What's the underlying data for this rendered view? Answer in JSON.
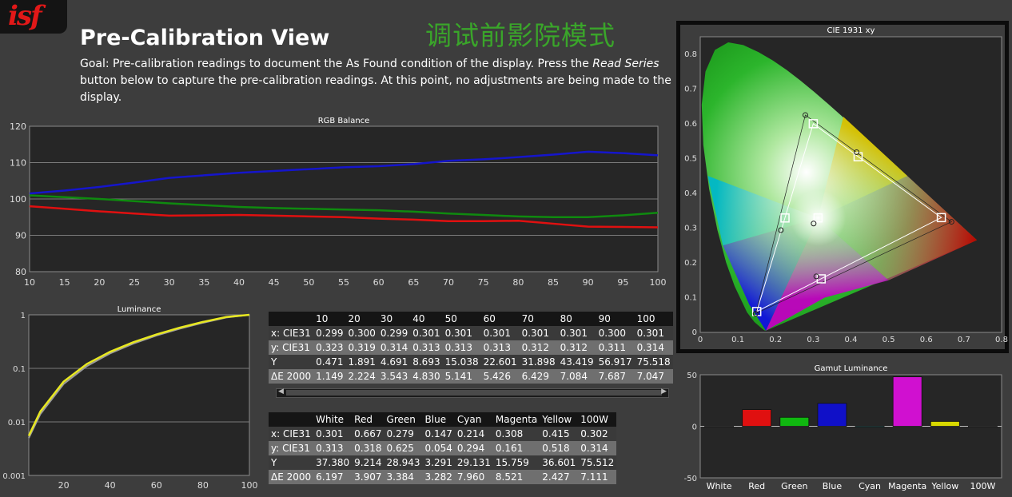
{
  "logo_text": "isf",
  "title": "Pre-Calibration View",
  "chinese_title": "调试前影院模式",
  "goal": {
    "prefix": "Goal: Pre-calibration readings to document the As Found condition of the display. Press the ",
    "emphasis": "Read Series",
    "suffix": " button below to capture the pre-calibration readings. At this point, no adjustments are being made to the display."
  },
  "colors": {
    "background": "#3d3d3d",
    "plot_bg": "#262626",
    "red": "#e01010",
    "green": "#0f8a0f",
    "blue": "#1515cc",
    "yellow": "#e8e820",
    "title_green": "#3aa52a"
  },
  "chart_data": [
    {
      "id": "rgb",
      "type": "line",
      "title": "RGB Balance",
      "x": [
        10,
        15,
        20,
        25,
        30,
        35,
        40,
        45,
        50,
        55,
        60,
        65,
        70,
        75,
        80,
        85,
        90,
        95,
        100
      ],
      "xlim": [
        10,
        100
      ],
      "ylim": [
        80,
        120
      ],
      "yticks": [
        80,
        90,
        100,
        110,
        120
      ],
      "grid": true,
      "series": [
        {
          "color": "#1515cc",
          "values": [
            101.5,
            102.3,
            103.3,
            104.5,
            105.8,
            106.5,
            107.2,
            107.7,
            108.2,
            108.7,
            109.0,
            109.6,
            110.5,
            110.9,
            111.5,
            112.2,
            113.0,
            112.6,
            112.0
          ]
        },
        {
          "color": "#0f8a0f",
          "values": [
            101.0,
            100.5,
            100.0,
            99.4,
            98.8,
            98.3,
            97.8,
            97.5,
            97.3,
            97.1,
            96.9,
            96.5,
            96.0,
            95.6,
            95.2,
            95.0,
            95.0,
            95.5,
            96.2
          ]
        },
        {
          "color": "#e01010",
          "values": [
            98.0,
            97.3,
            96.6,
            96.0,
            95.4,
            95.5,
            95.6,
            95.4,
            95.2,
            95.0,
            94.6,
            94.3,
            93.9,
            93.9,
            94.0,
            93.2,
            92.4,
            92.3,
            92.2
          ]
        }
      ]
    },
    {
      "id": "lum",
      "type": "line",
      "title": "Luminance",
      "log_y": true,
      "xticks": [
        20,
        40,
        60,
        80,
        100
      ],
      "ylim": [
        0.001,
        1
      ],
      "yticks": [
        "0.001",
        "0.01",
        "0.1",
        "1"
      ],
      "grid": true,
      "series": [
        {
          "color": "#e8e820",
          "x": [
            5,
            10,
            20,
            30,
            40,
            50,
            60,
            70,
            80,
            90,
            100
          ],
          "values": [
            0.0055,
            0.0157,
            0.0564,
            0.1206,
            0.2038,
            0.3075,
            0.4293,
            0.5748,
            0.7372,
            0.9096,
            1.0
          ]
        },
        {
          "color": "#9a9a9a",
          "x": [
            5,
            10,
            20,
            30,
            40,
            50,
            60,
            70,
            80,
            90,
            100
          ],
          "values": [
            0.005,
            0.014,
            0.051,
            0.11,
            0.19,
            0.29,
            0.41,
            0.55,
            0.71,
            0.89,
            1.0
          ]
        }
      ]
    },
    {
      "id": "cie",
      "type": "scatter",
      "title": "CIE 1931 xy",
      "xlim": [
        0,
        0.8
      ],
      "ylim": [
        0,
        0.85
      ],
      "xticks": [
        "0",
        "0.1",
        "0.2",
        "0.3",
        "0.4",
        "0.5",
        "0.6",
        "0.7",
        "0.8"
      ],
      "yticks": [
        "0",
        "0.1",
        "0.2",
        "0.3",
        "0.4",
        "0.5",
        "0.6",
        "0.7",
        "0.8"
      ],
      "targets": [
        {
          "x": 0.64,
          "y": 0.33
        },
        {
          "x": 0.3,
          "y": 0.6
        },
        {
          "x": 0.15,
          "y": 0.06
        },
        {
          "x": 0.225,
          "y": 0.329
        },
        {
          "x": 0.321,
          "y": 0.154
        },
        {
          "x": 0.419,
          "y": 0.505
        },
        {
          "x": 0.3127,
          "y": 0.329
        }
      ],
      "measured": [
        {
          "x": 0.667,
          "y": 0.318
        },
        {
          "x": 0.279,
          "y": 0.625
        },
        {
          "x": 0.147,
          "y": 0.054
        },
        {
          "x": 0.214,
          "y": 0.294
        },
        {
          "x": 0.308,
          "y": 0.161
        },
        {
          "x": 0.415,
          "y": 0.518
        },
        {
          "x": 0.301,
          "y": 0.313
        }
      ]
    },
    {
      "id": "gamut",
      "type": "bar",
      "title": "Gamut Luminance",
      "categories": [
        "White",
        "Red",
        "Green",
        "Blue",
        "Cyan",
        "Magenta",
        "Yellow",
        "100W"
      ],
      "values": [
        0,
        16.2,
        8.7,
        22.3,
        -0.6,
        48.0,
        4.7,
        0
      ],
      "bar_colors": [
        "#888888",
        "#e01010",
        "#10b810",
        "#1010c8",
        "#10c0c0",
        "#d010d0",
        "#d8d800",
        "#888888"
      ],
      "ylim": [
        -50,
        50
      ],
      "yticks": [
        "-50",
        "0",
        "50"
      ]
    }
  ],
  "table_series": {
    "headers": [
      "",
      "10",
      "20",
      "30",
      "40",
      "50",
      "60",
      "70",
      "80",
      "90",
      "100"
    ],
    "rows": [
      [
        "x: CIE31",
        "0.299",
        "0.300",
        "0.299",
        "0.301",
        "0.301",
        "0.301",
        "0.301",
        "0.301",
        "0.300",
        "0.301"
      ],
      [
        "y: CIE31",
        "0.323",
        "0.319",
        "0.314",
        "0.313",
        "0.313",
        "0.313",
        "0.312",
        "0.312",
        "0.311",
        "0.314"
      ],
      [
        "Y",
        "0.471",
        "1.891",
        "4.691",
        "8.693",
        "15.038",
        "22.601",
        "31.898",
        "43.419",
        "56.917",
        "75.518"
      ],
      [
        "ΔE 2000",
        "1.149",
        "2.224",
        "3.543",
        "4.830",
        "5.141",
        "5.426",
        "6.429",
        "7.084",
        "7.687",
        "7.047"
      ]
    ]
  },
  "table_gamut": {
    "headers": [
      "",
      "White",
      "Red",
      "Green",
      "Blue",
      "Cyan",
      "Magenta",
      "Yellow",
      "100W"
    ],
    "rows": [
      [
        "x: CIE31",
        "0.301",
        "0.667",
        "0.279",
        "0.147",
        "0.214",
        "0.308",
        "0.415",
        "0.302"
      ],
      [
        "y: CIE31",
        "0.313",
        "0.318",
        "0.625",
        "0.054",
        "0.294",
        "0.161",
        "0.518",
        "0.314"
      ],
      [
        "Y",
        "37.380",
        "9.214",
        "28.943",
        "3.291",
        "29.131",
        "15.759",
        "36.601",
        "75.512"
      ],
      [
        "ΔE 2000",
        "6.197",
        "3.907",
        "3.384",
        "3.282",
        "7.960",
        "8.521",
        "2.427",
        "7.111"
      ]
    ]
  }
}
